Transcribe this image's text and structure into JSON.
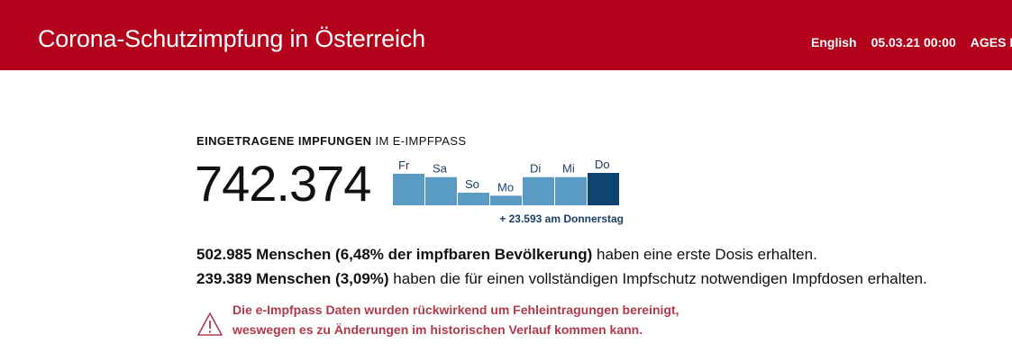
{
  "header": {
    "title": "Corona-Schutzimpfung in Österreich",
    "language_link": "English",
    "timestamp": "05.03.21 00:00",
    "source": "AGES D",
    "background": "#b3001b"
  },
  "vaccinations": {
    "label_strong": "EINGETRAGENE IMPFUNGEN",
    "label_rest": " IM E-IMPFPASS",
    "total": "742.374",
    "daily_delta": "+ 23.593 am Donnerstag"
  },
  "chart_data": {
    "type": "bar",
    "categories": [
      "Fr",
      "Sa",
      "So",
      "Mo",
      "Di",
      "Mi",
      "Do"
    ],
    "values": [
      23000,
      20500,
      9200,
      7000,
      20500,
      20500,
      23593
    ],
    "highlight_index": 6,
    "colors": {
      "bar": "#5a9bc4",
      "highlight": "#0f4470",
      "label": "#1c3f66"
    },
    "grid": false
  },
  "summary": {
    "line1_strong": "502.985 Menschen (6,48% der impfbaren Bevölkerung)",
    "line1_rest": " haben eine erste Dosis erhalten.",
    "line2_strong": "239.389 Menschen (3,09%)",
    "line2_rest": " haben die für einen vollständigen Impfschutz notwendigen Impfdosen erhalten."
  },
  "warning": {
    "line1": "Die e-Impfpass Daten wurden rückwirkend um Fehleintragungen bereinigt,",
    "line2": "weswegen es zu Änderungen im historischen Verlauf kommen kann.",
    "icon": "warning-triangle-icon",
    "color": "#b23a4e"
  }
}
